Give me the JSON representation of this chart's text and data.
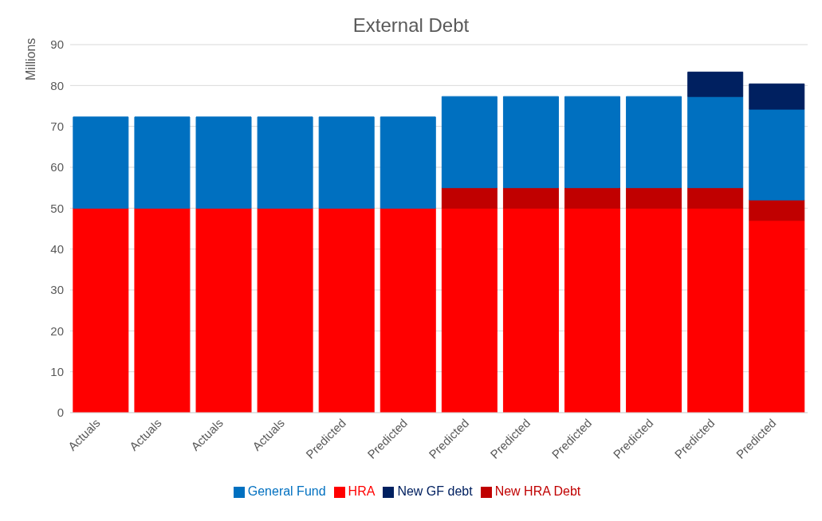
{
  "chart_data": {
    "type": "bar",
    "title": "External Debt",
    "ylabel": "Millions",
    "stacked": true,
    "grid": "y",
    "legend": "bottom",
    "categories": [
      "Actuals",
      "Actuals",
      "Actuals",
      "Actuals",
      "Predicted",
      "Predicted",
      "Predicted",
      "Predicted",
      "Predicted",
      "Predicted",
      "Predicted",
      "Predicted"
    ],
    "ylim": [
      0,
      90
    ],
    "yticks": [
      0,
      10,
      20,
      30,
      40,
      50,
      60,
      70,
      80,
      90
    ],
    "series": [
      {
        "name": "HRA",
        "color": "#ff0000",
        "values": [
          50,
          50,
          50,
          50,
          50,
          50,
          50,
          50,
          50,
          50,
          50,
          47
        ]
      },
      {
        "name": "New HRA Debt",
        "color": "#c00000",
        "values": [
          0,
          0,
          0,
          0,
          0,
          0,
          5,
          5,
          5,
          5,
          5,
          5
        ]
      },
      {
        "name": "General Fund",
        "color": "#0070c0",
        "values": [
          22.3,
          22.3,
          22.3,
          22.3,
          22.3,
          22.3,
          22.3,
          22.3,
          22.3,
          22.3,
          22.3,
          22.2
        ]
      },
      {
        "name": "New GF debt",
        "color": "#002060",
        "values": [
          0,
          0,
          0,
          0,
          0,
          0,
          0,
          0,
          0,
          0,
          6,
          6.2
        ]
      }
    ]
  }
}
